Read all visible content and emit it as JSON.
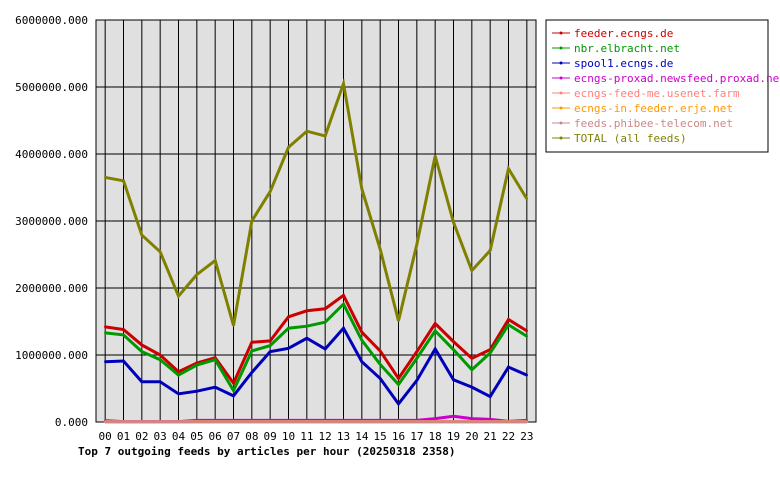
{
  "chart_data": {
    "type": "line",
    "title": "Top 7 outgoing feeds by articles per hour (20250318 2358)",
    "xlabel": "",
    "ylabel": "",
    "categories": [
      "00",
      "01",
      "02",
      "03",
      "04",
      "05",
      "06",
      "07",
      "08",
      "09",
      "10",
      "11",
      "12",
      "13",
      "14",
      "15",
      "16",
      "17",
      "18",
      "19",
      "20",
      "21",
      "22",
      "23"
    ],
    "ylim": [
      0,
      6000000
    ],
    "yticks": [
      {
        "value": 0,
        "label": "0.000"
      },
      {
        "value": 1000000,
        "label": "1000000.000"
      },
      {
        "value": 2000000,
        "label": "2000000.000"
      },
      {
        "value": 3000000,
        "label": "3000000.000"
      },
      {
        "value": 4000000,
        "label": "4000000.000"
      },
      {
        "value": 5000000,
        "label": "5000000.000"
      },
      {
        "value": 6000000,
        "label": "6000000.000"
      }
    ],
    "grid": true,
    "legend_position": "top-right",
    "series": [
      {
        "name": "feeder.ecngs.de",
        "color": "#cc0000",
        "values": [
          1420000,
          1380000,
          1150000,
          1000000,
          750000,
          880000,
          960000,
          580000,
          1190000,
          1210000,
          1570000,
          1660000,
          1690000,
          1890000,
          1340000,
          1060000,
          650000,
          1050000,
          1470000,
          1200000,
          950000,
          1080000,
          1530000,
          1360000
        ]
      },
      {
        "name": "nbr.elbracht.net",
        "color": "#009900",
        "values": [
          1330000,
          1300000,
          1050000,
          930000,
          700000,
          850000,
          930000,
          470000,
          1060000,
          1140000,
          1400000,
          1430000,
          1490000,
          1760000,
          1220000,
          860000,
          560000,
          950000,
          1360000,
          1080000,
          780000,
          1030000,
          1450000,
          1280000
        ]
      },
      {
        "name": "spool1.ecngs.de",
        "color": "#0000bb",
        "values": [
          900000,
          910000,
          600000,
          600000,
          420000,
          460000,
          520000,
          390000,
          740000,
          1050000,
          1100000,
          1250000,
          1090000,
          1400000,
          900000,
          650000,
          270000,
          620000,
          1090000,
          630000,
          520000,
          380000,
          820000,
          700000
        ]
      },
      {
        "name": "ecngs-proxad.newsfeed.proxad.net",
        "color": "#cc00cc",
        "values": [
          20000,
          5000,
          5000,
          5000,
          5000,
          25000,
          25000,
          25000,
          25000,
          25000,
          25000,
          25000,
          25000,
          25000,
          25000,
          25000,
          25000,
          25000,
          50000,
          85000,
          50000,
          40000,
          10000,
          25000
        ]
      },
      {
        "name": "ecngs-feed-me.usenet.farm",
        "color": "#ff8080",
        "values": [
          5000,
          3000,
          3000,
          3000,
          3000,
          5000,
          5000,
          5000,
          5000,
          5000,
          5000,
          5000,
          5000,
          5000,
          5000,
          5000,
          5000,
          5000,
          5000,
          5000,
          5000,
          5000,
          5000,
          5000
        ]
      },
      {
        "name": "ecngs-in.feeder.erje.net",
        "color": "#ff9900",
        "values": [
          3000,
          2000,
          2000,
          2000,
          2000,
          3000,
          3000,
          3000,
          3000,
          3000,
          3000,
          3000,
          3000,
          3000,
          3000,
          3000,
          3000,
          3000,
          3000,
          3000,
          3000,
          3000,
          3000,
          3000
        ]
      },
      {
        "name": "feeds.phibee-telecom.net",
        "color": "#cc8888",
        "values": [
          2000,
          1000,
          1000,
          1000,
          1000,
          2000,
          2000,
          2000,
          2000,
          2000,
          2000,
          2000,
          2000,
          2000,
          2000,
          2000,
          2000,
          2000,
          2000,
          2000,
          2000,
          2000,
          2000,
          2000
        ]
      },
      {
        "name": "TOTAL (all feeds)",
        "color": "#808000",
        "values": [
          3650000,
          3600000,
          2790000,
          2540000,
          1880000,
          2200000,
          2410000,
          1440000,
          3000000,
          3440000,
          4100000,
          4340000,
          4270000,
          5050000,
          3480000,
          2580000,
          1510000,
          2650000,
          3970000,
          2980000,
          2260000,
          2560000,
          3780000,
          3330000
        ]
      }
    ]
  }
}
